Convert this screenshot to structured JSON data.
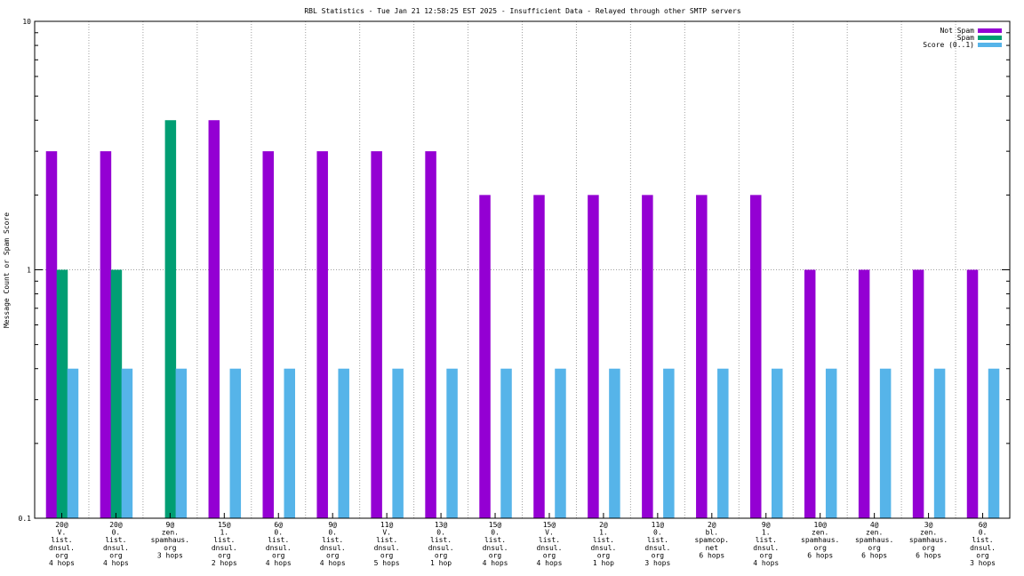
{
  "chart_data": {
    "type": "bar",
    "title": "RBL Statistics - Tue Jan 21 12:58:25 EST 2025 - Insufficient Data - Relayed through other SMTP servers",
    "xlabel": "",
    "ylabel": "Message Count or Spam Score",
    "yscale": "log",
    "ylim": [
      0.1,
      10
    ],
    "yticks": [
      "10",
      "1",
      "0.1"
    ],
    "ytick_values": [
      10,
      1,
      0.1
    ],
    "grid": true,
    "legend_position": "top-right",
    "colors": {
      "not_spam": "#9400d3",
      "spam": "#009e73",
      "score": "#56b4e9"
    },
    "categories": [
      [
        "20@",
        "V.",
        "list.",
        "dnsul.",
        "org",
        "4 hops"
      ],
      [
        "20@",
        "0.",
        "list.",
        "dnsul.",
        "org",
        "4 hops"
      ],
      [
        "9@",
        "zen.",
        "spamhaus.",
        "org",
        "3 hops"
      ],
      [
        "15@",
        "1.",
        "list.",
        "dnsul.",
        "org",
        "2 hops"
      ],
      [
        "6@",
        "0.",
        "list.",
        "dnsul.",
        "org",
        "4 hops"
      ],
      [
        "9@",
        "0.",
        "list.",
        "dnsul.",
        "org",
        "4 hops"
      ],
      [
        "11@",
        "V.",
        "list.",
        "dnsul.",
        "org",
        "5 hops"
      ],
      [
        "13@",
        "0.",
        "list.",
        "dnsul.",
        "org",
        "1 hop"
      ],
      [
        "15@",
        "0.",
        "list.",
        "dnsul.",
        "org",
        "4 hops"
      ],
      [
        "15@",
        "V.",
        "list.",
        "dnsul.",
        "org",
        "4 hops"
      ],
      [
        "2@",
        "1.",
        "list.",
        "dnsul.",
        "org",
        "1 hop"
      ],
      [
        "11@",
        "0.",
        "list.",
        "dnsul.",
        "org",
        "3 hops"
      ],
      [
        "2@",
        "bl.",
        "spamcop.",
        "net",
        "6 hops"
      ],
      [
        "9@",
        "1.",
        "list.",
        "dnsul.",
        "org",
        "4 hops"
      ],
      [
        "10@",
        "zen.",
        "spamhaus.",
        "org",
        "6 hops"
      ],
      [
        "4@",
        "zen.",
        "spamhaus.",
        "org",
        "6 hops"
      ],
      [
        "3@",
        "zen.",
        "spamhaus.",
        "org",
        "6 hops"
      ],
      [
        "6@",
        "0.",
        "list.",
        "dnsul.",
        "org",
        "3 hops"
      ]
    ],
    "series": [
      {
        "name": "Not Spam",
        "color": "#9400d3",
        "values": [
          3,
          3,
          null,
          4,
          3,
          3,
          3,
          3,
          2,
          2,
          2,
          2,
          2,
          2,
          1,
          1,
          1,
          1
        ]
      },
      {
        "name": "Spam",
        "color": "#009e73",
        "values": [
          1,
          1,
          4,
          null,
          null,
          null,
          null,
          null,
          null,
          null,
          null,
          null,
          null,
          null,
          null,
          null,
          null,
          null
        ]
      },
      {
        "name": "Score (0..1)",
        "color": "#56b4e9",
        "values": [
          0.4,
          0.4,
          0.4,
          0.4,
          0.4,
          0.4,
          0.4,
          0.4,
          0.4,
          0.4,
          0.4,
          0.4,
          0.4,
          0.4,
          0.4,
          0.4,
          0.4,
          0.4
        ]
      }
    ]
  }
}
